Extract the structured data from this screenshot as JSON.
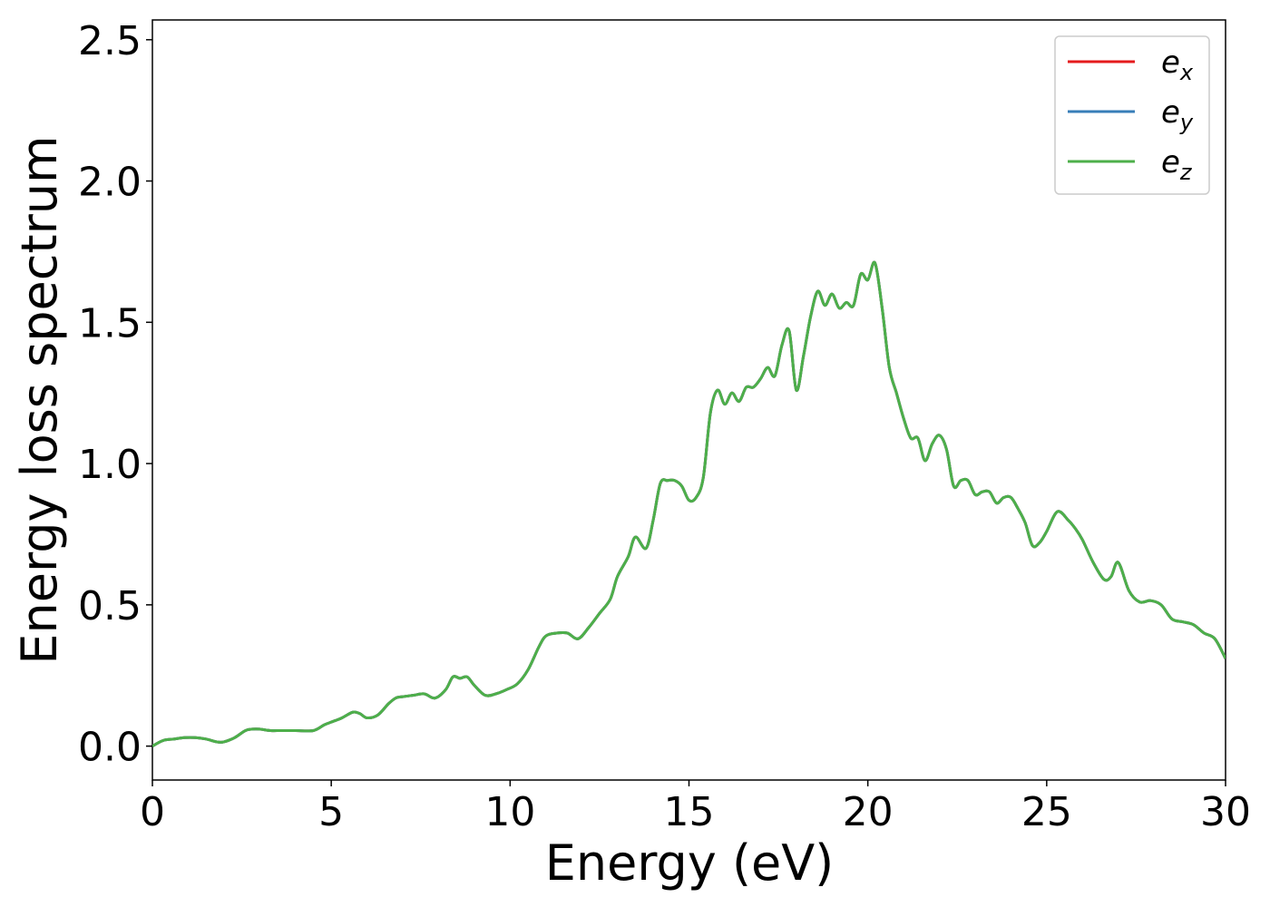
{
  "chart_data": {
    "type": "line",
    "title": "",
    "xlabel": "Energy (eV)",
    "ylabel": "Energy loss spectrum",
    "xlim": [
      0,
      30
    ],
    "ylim": [
      -0.12,
      2.57
    ],
    "xticks": [
      0,
      5,
      10,
      15,
      20,
      25,
      30
    ],
    "yticks": [
      0.0,
      0.5,
      1.0,
      1.5,
      2.0,
      2.5
    ],
    "xtick_labels": [
      "0",
      "5",
      "10",
      "15",
      "20",
      "25",
      "30"
    ],
    "ytick_labels": [
      "0.0",
      "0.5",
      "1.0",
      "1.5",
      "2.0",
      "2.5"
    ],
    "grid": false,
    "legend_position": "top-right",
    "series_colors": [
      "#e41a1c",
      "#377eb8",
      "#4daf4a"
    ],
    "series": [
      {
        "name": "e_x",
        "legend_base": "e",
        "legend_sub": "x"
      },
      {
        "name": "e_y",
        "legend_base": "e",
        "legend_sub": "y"
      },
      {
        "name": "e_z",
        "legend_base": "e",
        "legend_sub": "z"
      }
    ],
    "x": [
      0.0,
      0.3,
      0.6,
      0.9,
      1.2,
      1.5,
      1.8,
      2.0,
      2.3,
      2.6,
      2.8,
      3.0,
      3.3,
      3.6,
      4.0,
      4.5,
      4.8,
      5.0,
      5.3,
      5.6,
      5.8,
      6.0,
      6.3,
      6.6,
      6.8,
      7.0,
      7.3,
      7.6,
      7.9,
      8.2,
      8.4,
      8.6,
      8.8,
      9.0,
      9.3,
      9.6,
      9.9,
      10.2,
      10.5,
      10.8,
      11.0,
      11.3,
      11.6,
      11.9,
      12.2,
      12.5,
      12.8,
      13.0,
      13.3,
      13.5,
      13.8,
      14.0,
      14.2,
      14.4,
      14.6,
      14.8,
      15.0,
      15.2,
      15.4,
      15.6,
      15.8,
      16.0,
      16.2,
      16.4,
      16.6,
      16.8,
      17.0,
      17.2,
      17.4,
      17.6,
      17.8,
      18.0,
      18.2,
      18.4,
      18.6,
      18.8,
      19.0,
      19.2,
      19.4,
      19.6,
      19.8,
      20.0,
      20.2,
      20.4,
      20.6,
      20.8,
      21.0,
      21.2,
      21.4,
      21.6,
      21.8,
      22.0,
      22.2,
      22.4,
      22.6,
      22.8,
      23.0,
      23.2,
      23.4,
      23.6,
      23.8,
      24.0,
      24.2,
      24.4,
      24.6,
      24.8,
      25.0,
      25.3,
      25.6,
      25.8,
      26.0,
      26.3,
      26.6,
      26.8,
      27.0,
      27.3,
      27.6,
      27.9,
      28.2,
      28.5,
      28.8,
      29.1,
      29.4,
      29.7,
      30.0
    ],
    "y": [
      0.0,
      0.02,
      0.025,
      0.03,
      0.03,
      0.025,
      0.015,
      0.015,
      0.03,
      0.055,
      0.06,
      0.06,
      0.055,
      0.055,
      0.055,
      0.055,
      0.075,
      0.085,
      0.1,
      0.12,
      0.115,
      0.1,
      0.11,
      0.15,
      0.17,
      0.175,
      0.18,
      0.185,
      0.17,
      0.2,
      0.245,
      0.24,
      0.245,
      0.215,
      0.18,
      0.185,
      0.2,
      0.22,
      0.27,
      0.35,
      0.39,
      0.4,
      0.4,
      0.38,
      0.42,
      0.47,
      0.52,
      0.6,
      0.67,
      0.74,
      0.7,
      0.8,
      0.93,
      0.94,
      0.94,
      0.92,
      0.87,
      0.88,
      0.95,
      1.18,
      1.26,
      1.21,
      1.25,
      1.22,
      1.27,
      1.27,
      1.3,
      1.34,
      1.31,
      1.42,
      1.47,
      1.26,
      1.38,
      1.52,
      1.61,
      1.56,
      1.6,
      1.55,
      1.57,
      1.56,
      1.67,
      1.65,
      1.71,
      1.55,
      1.34,
      1.25,
      1.16,
      1.09,
      1.09,
      1.01,
      1.07,
      1.1,
      1.05,
      0.92,
      0.94,
      0.94,
      0.89,
      0.9,
      0.9,
      0.86,
      0.88,
      0.88,
      0.84,
      0.79,
      0.71,
      0.72,
      0.76,
      0.83,
      0.8,
      0.77,
      0.73,
      0.65,
      0.59,
      0.6,
      0.65,
      0.55,
      0.51,
      0.515,
      0.5,
      0.45,
      0.44,
      0.43,
      0.4,
      0.38,
      0.31
    ]
  }
}
